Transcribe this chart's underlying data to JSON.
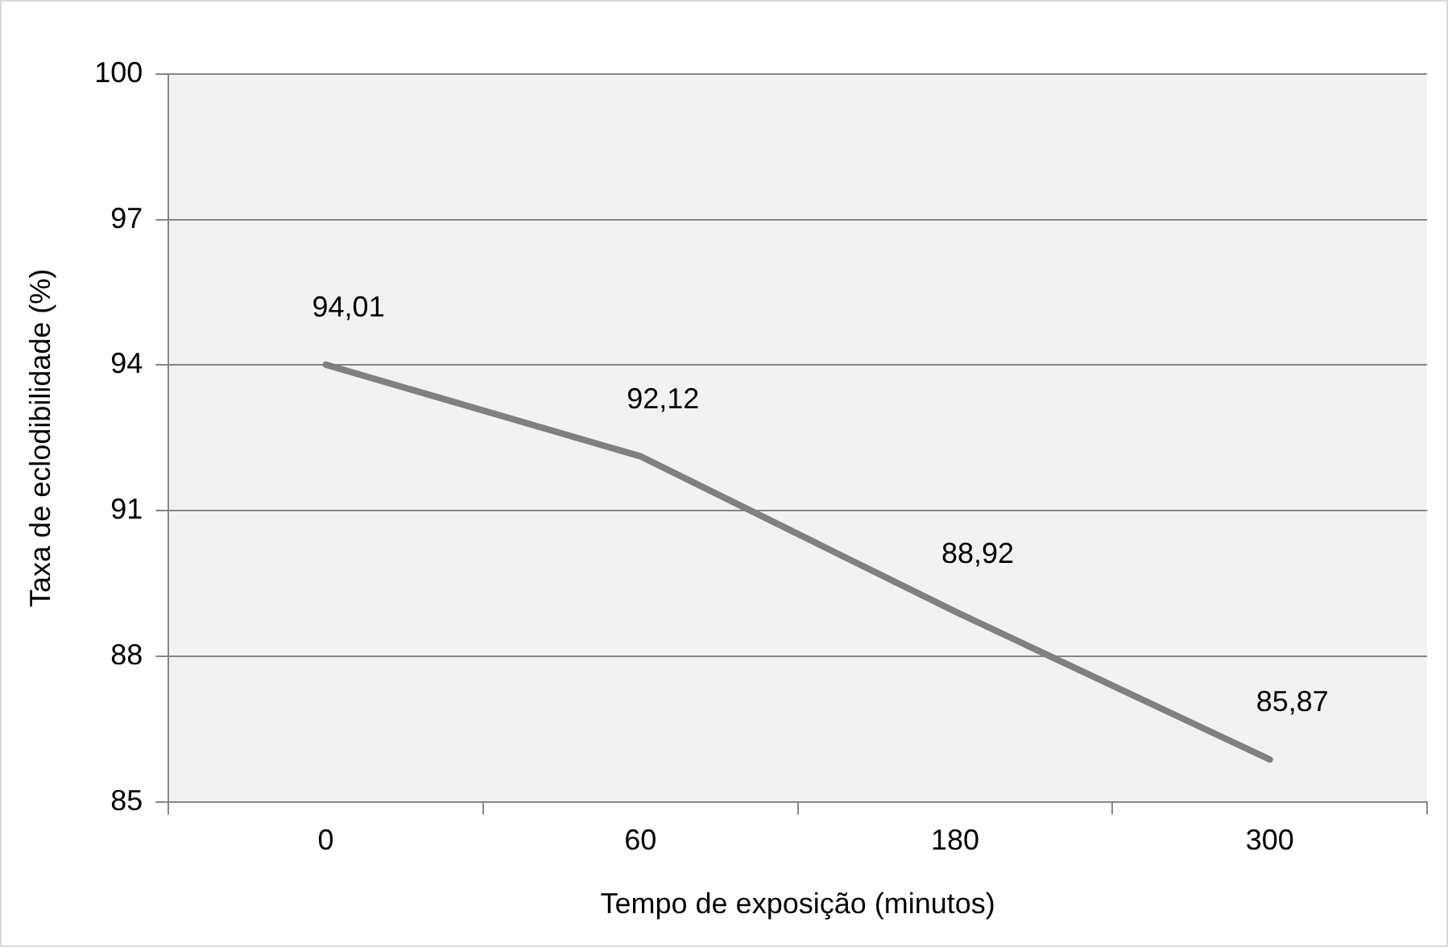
{
  "chart_data": {
    "type": "line",
    "xlabel": "Tempo de exposição (minutos)",
    "ylabel": "Taxa de eclodibilidade (%)",
    "categories": [
      "0",
      "60",
      "180",
      "300"
    ],
    "values": [
      94.01,
      92.12,
      88.92,
      85.87
    ],
    "value_labels": [
      "94,01",
      "92,12",
      "88,92",
      "85,87"
    ],
    "color": "#808080",
    "ylim": [
      85,
      100
    ],
    "yticks": [
      85,
      88,
      91,
      94,
      97,
      100
    ],
    "grid": "y",
    "legend": false,
    "marker": "none",
    "line_style": "solid"
  }
}
